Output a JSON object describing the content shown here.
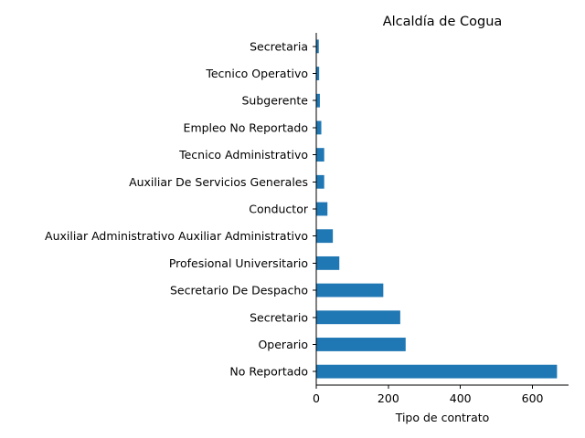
{
  "chart_data": {
    "type": "bar",
    "orientation": "horizontal",
    "title": "Alcaldía de Cogua",
    "xlabel": "Tipo de contrato",
    "ylabel": "",
    "xlim": [
      0,
      700
    ],
    "xticks": [
      0,
      200,
      400,
      600
    ],
    "categories": [
      "No Reportado",
      "Operario",
      "Secretario",
      "Secretario De Despacho",
      "Profesional Universitario",
      "Auxiliar Administrativo Auxiliar Administrativo",
      "Conductor",
      "Auxiliar De Servicios Generales",
      "Tecnico Administrativo",
      "Empleo No Reportado",
      "Subgerente",
      "Tecnico Operativo",
      "Secretaria"
    ],
    "values": [
      668,
      248,
      233,
      186,
      64,
      46,
      31,
      22,
      22,
      14,
      10,
      8,
      7
    ],
    "bar_color": "#1f77b4",
    "grid": false,
    "legend": "none"
  }
}
